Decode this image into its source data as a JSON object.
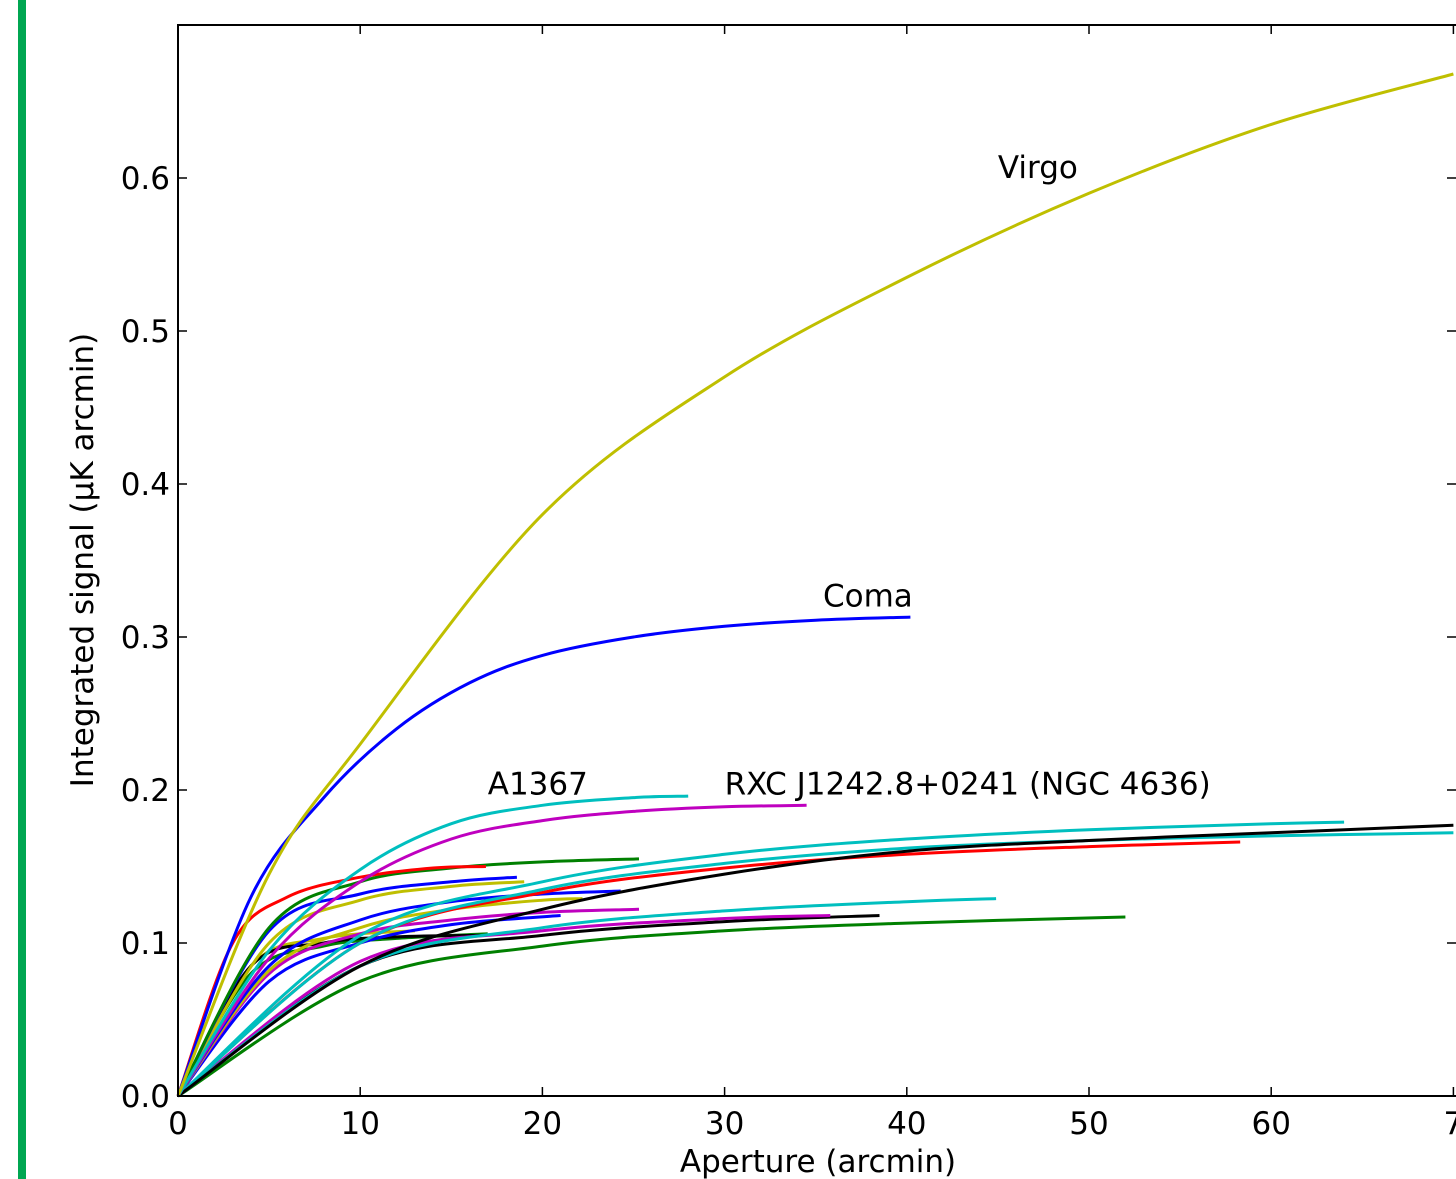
{
  "colors": {
    "accent_bar": "#00a651",
    "axes": "#000000",
    "background": "#ffffff"
  },
  "chart_data": {
    "type": "line",
    "title": "",
    "xlabel": "Aperture (arcmin)",
    "ylabel": "Integrated signal (μK arcmin)",
    "xlim": [
      0,
      70
    ],
    "ylim": [
      0.0,
      0.7
    ],
    "x_ticks": [
      "0",
      "10",
      "20",
      "30",
      "40",
      "50",
      "60",
      "7"
    ],
    "y_ticks": [
      "0.0",
      "0.1",
      "0.2",
      "0.3",
      "0.4",
      "0.5",
      "0.6"
    ],
    "grid": false,
    "legend": "none",
    "annotations": [
      {
        "text": "Virgo",
        "x": 45.0,
        "y": 0.6
      },
      {
        "text": "Coma",
        "x": 35.4,
        "y": 0.32
      },
      {
        "text": "A1367",
        "x": 17.0,
        "y": 0.197
      },
      {
        "text": "RXC J1242.8+0241 (NGC 4636)",
        "x": 30.0,
        "y": 0.197
      }
    ],
    "series": [
      {
        "name": "Virgo",
        "color": "#bfbf00",
        "x": [
          0,
          5,
          10,
          20,
          30,
          40,
          50,
          60,
          70
        ],
        "y": [
          0.0,
          0.145,
          0.23,
          0.38,
          0.47,
          0.535,
          0.59,
          0.635,
          0.668
        ]
      },
      {
        "name": "Coma",
        "color": "#0000ff",
        "x": [
          0,
          4,
          8,
          12,
          16,
          20,
          25,
          30,
          35,
          40.2
        ],
        "y": [
          0.0,
          0.13,
          0.195,
          0.24,
          0.27,
          0.288,
          0.3,
          0.307,
          0.311,
          0.313
        ]
      },
      {
        "name": "A1367",
        "color": "#00bfbf",
        "x": [
          0,
          5,
          10,
          15,
          20,
          25,
          28
        ],
        "y": [
          0.0,
          0.095,
          0.148,
          0.178,
          0.19,
          0.195,
          0.196
        ]
      },
      {
        "name": "RXC J1242.8+0241 (NGC 4636)",
        "color": "#bf00bf",
        "x": [
          0,
          5,
          10,
          15,
          20,
          25,
          30,
          34.5
        ],
        "y": [
          0.0,
          0.09,
          0.14,
          0.168,
          0.18,
          0.186,
          0.189,
          0.19
        ]
      },
      {
        "color": "#000000",
        "x": [
          0,
          10,
          20,
          30,
          40,
          50,
          60,
          70
        ],
        "y": [
          0.0,
          0.085,
          0.122,
          0.145,
          0.16,
          0.167,
          0.172,
          0.177
        ]
      },
      {
        "color": "#00bfbf",
        "x": [
          0,
          10,
          20,
          30,
          40,
          50,
          60,
          64
        ],
        "y": [
          0.0,
          0.105,
          0.14,
          0.158,
          0.168,
          0.174,
          0.178,
          0.179
        ]
      },
      {
        "color": "#00bfbf",
        "x": [
          0,
          10,
          20,
          30,
          40,
          50,
          60,
          70
        ],
        "y": [
          0.0,
          0.1,
          0.135,
          0.152,
          0.162,
          0.167,
          0.17,
          0.172
        ]
      },
      {
        "color": "#ff0000",
        "x": [
          0,
          10,
          20,
          30,
          40,
          50,
          58.3
        ],
        "y": [
          0.0,
          0.1,
          0.133,
          0.149,
          0.158,
          0.163,
          0.166
        ]
      },
      {
        "color": "#ff0000",
        "x": [
          0,
          3,
          6,
          10,
          14,
          16.9
        ],
        "y": [
          0.0,
          0.1,
          0.13,
          0.143,
          0.149,
          0.15
        ]
      },
      {
        "color": "#008000",
        "x": [
          0,
          5,
          10,
          15,
          20,
          25.3
        ],
        "y": [
          0.0,
          0.11,
          0.14,
          0.149,
          0.153,
          0.155
        ]
      },
      {
        "color": "#0000ff",
        "x": [
          0,
          5,
          10,
          15,
          18.6
        ],
        "y": [
          0.0,
          0.108,
          0.132,
          0.14,
          0.143
        ]
      },
      {
        "color": "#bfbf00",
        "x": [
          0,
          5,
          10,
          15,
          19
        ],
        "y": [
          0.0,
          0.1,
          0.128,
          0.137,
          0.14
        ]
      },
      {
        "color": "#0000ff",
        "x": [
          0,
          5,
          10,
          15,
          20,
          24.3
        ],
        "y": [
          0.0,
          0.085,
          0.115,
          0.127,
          0.132,
          0.134
        ]
      },
      {
        "color": "#bfbf00",
        "x": [
          0,
          5,
          10,
          15,
          20,
          22.2
        ],
        "y": [
          0.0,
          0.082,
          0.11,
          0.122,
          0.128,
          0.129
        ]
      },
      {
        "color": "#bf00bf",
        "x": [
          0,
          5,
          10,
          15,
          20,
          25.3
        ],
        "y": [
          0.0,
          0.08,
          0.106,
          0.115,
          0.12,
          0.122
        ]
      },
      {
        "color": "#0000ff",
        "x": [
          0,
          5,
          10,
          15,
          21
        ],
        "y": [
          0.0,
          0.075,
          0.1,
          0.112,
          0.118
        ]
      },
      {
        "color": "#00bfbf",
        "x": [
          0,
          10,
          20,
          30,
          40,
          44.9
        ],
        "y": [
          0.0,
          0.085,
          0.11,
          0.121,
          0.127,
          0.129
        ]
      },
      {
        "color": "#bf00bf",
        "x": [
          0,
          10,
          20,
          30,
          35.8
        ],
        "y": [
          0.0,
          0.088,
          0.108,
          0.116,
          0.118
        ]
      },
      {
        "color": "#000000",
        "x": [
          0,
          10,
          20,
          30,
          38.5
        ],
        "y": [
          0.0,
          0.085,
          0.105,
          0.114,
          0.118
        ]
      },
      {
        "color": "#008000",
        "x": [
          0,
          10,
          20,
          30,
          40,
          52
        ],
        "y": [
          0.0,
          0.075,
          0.098,
          0.108,
          0.113,
          0.117
        ]
      },
      {
        "color": "#000000",
        "x": [
          0,
          4,
          8,
          12,
          16.6
        ],
        "y": [
          0.0,
          0.085,
          0.1,
          0.104,
          0.105
        ]
      },
      {
        "color": "#bfbf00",
        "x": [
          0,
          4,
          8,
          13
        ],
        "y": [
          0.0,
          0.085,
          0.103,
          0.108
        ]
      },
      {
        "color": "#008000",
        "x": [
          0,
          4,
          8,
          12,
          17
        ],
        "y": [
          0.0,
          0.08,
          0.098,
          0.103,
          0.106
        ]
      }
    ]
  }
}
